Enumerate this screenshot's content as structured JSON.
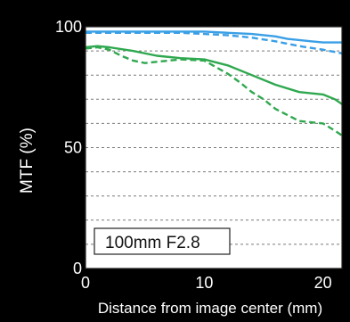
{
  "chart_data": {
    "type": "line",
    "ylabel": "MTF (%)",
    "xlabel": "Distance from image center (mm)",
    "annotation": "100mm F2.8",
    "xlim": [
      0,
      21.6
    ],
    "ylim": [
      0,
      100
    ],
    "xticks": [
      0,
      10,
      20
    ],
    "yticks": [
      0,
      50,
      100
    ],
    "xtick_labels": [
      "0",
      "10",
      "20"
    ],
    "ytick_labels": [
      "0",
      "50",
      "100"
    ],
    "grid": "horizontal dashed lines every 10%",
    "series": [
      {
        "color": "#3a9fe6",
        "style": "solid",
        "x": [
          0,
          2,
          4,
          6,
          8,
          10,
          12,
          14,
          16,
          17,
          18,
          19,
          20,
          21,
          21.6
        ],
        "y": [
          98,
          98,
          98,
          98,
          98,
          98,
          97.5,
          97,
          96,
          95,
          94.5,
          94,
          93.5,
          93.5,
          93.5
        ]
      },
      {
        "color": "#3a9fe6",
        "style": "dashed",
        "x": [
          0,
          2,
          4,
          6,
          8,
          10,
          12,
          14,
          16,
          18,
          20,
          21.6
        ],
        "y": [
          97.5,
          97.5,
          97.5,
          97.5,
          97.5,
          97,
          96.5,
          95.5,
          94,
          92,
          90.5,
          89
        ]
      },
      {
        "color": "#2fa84f",
        "style": "solid",
        "x": [
          0,
          1,
          2,
          4,
          6,
          8,
          10,
          12,
          14,
          16,
          18,
          20,
          21,
          21.6
        ],
        "y": [
          91.5,
          92,
          91.5,
          90,
          88,
          87,
          86.5,
          84,
          80,
          76,
          73,
          72,
          70,
          68
        ]
      },
      {
        "color": "#2fa84f",
        "style": "dashed",
        "x": [
          0,
          1,
          2,
          3,
          4,
          5,
          6,
          8,
          10,
          12,
          13,
          14,
          15,
          16,
          18,
          20,
          21,
          21.6
        ],
        "y": [
          91,
          91.5,
          90.5,
          88,
          86,
          85,
          85.5,
          86.5,
          86,
          80.5,
          77,
          73,
          70,
          66,
          61,
          60,
          57,
          55
        ]
      }
    ]
  }
}
